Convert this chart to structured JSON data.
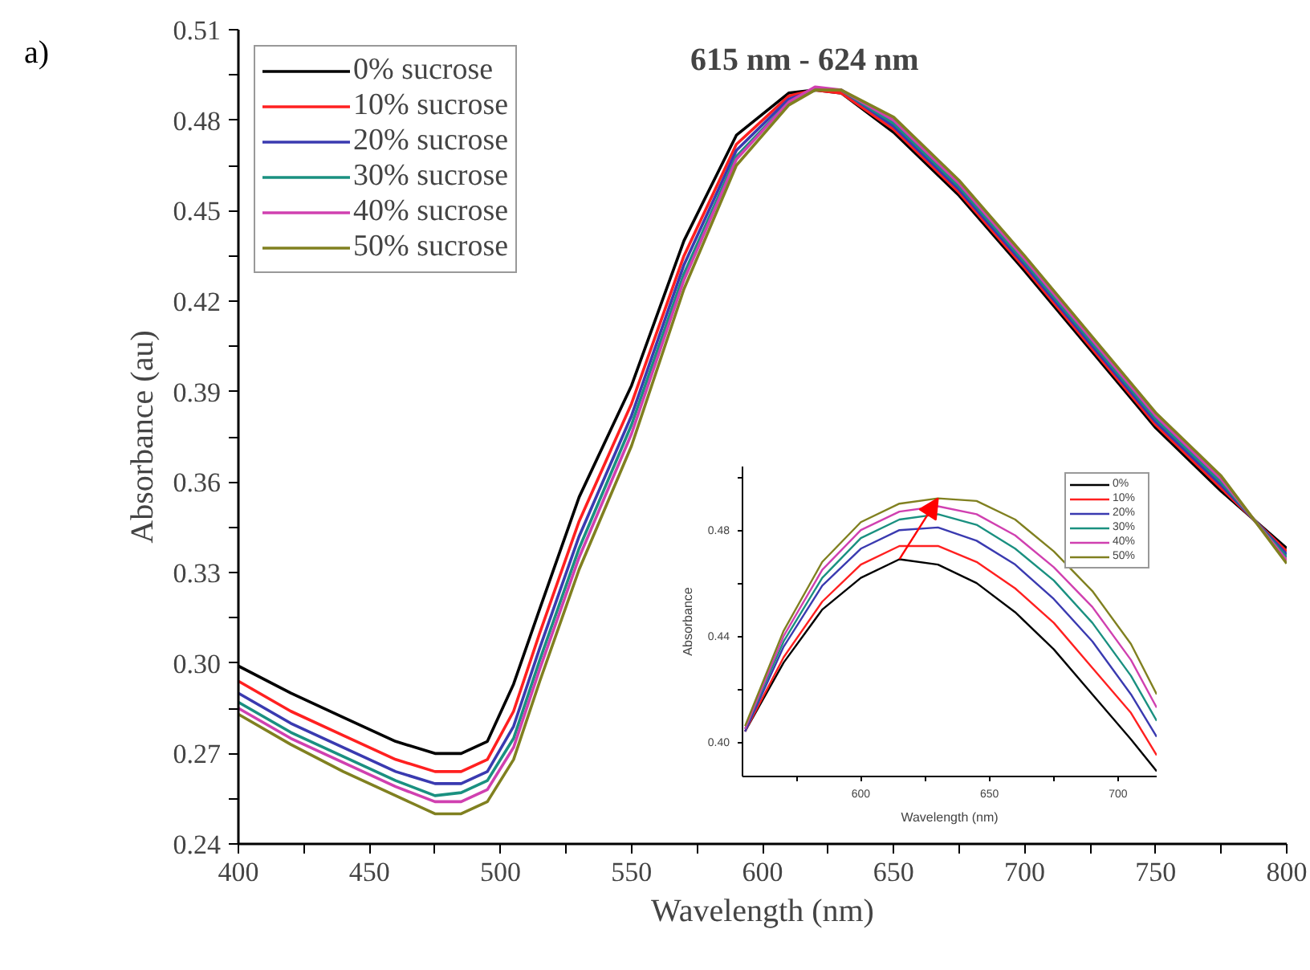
{
  "chart_data": [
    {
      "type": "line",
      "xlabel": "Wavelength (nm)",
      "ylabel": "Absorbance (au)",
      "annotations": [
        "a)",
        "615 nm - 624 nm"
      ],
      "x": [
        400,
        420,
        440,
        460,
        475,
        485,
        495,
        505,
        515,
        530,
        550,
        570,
        590,
        610,
        620,
        630,
        650,
        675,
        700,
        725,
        750,
        775,
        800
      ],
      "series": [
        {
          "name": "0% sucrose",
          "color": "#000000",
          "values": [
            0.299,
            0.29,
            0.282,
            0.274,
            0.27,
            0.27,
            0.274,
            0.293,
            0.318,
            0.355,
            0.392,
            0.44,
            0.475,
            0.489,
            0.49,
            0.489,
            0.476,
            0.455,
            0.43,
            0.404,
            0.378,
            0.357,
            0.338
          ]
        },
        {
          "name": "10% sucrose",
          "color": "#ff2020",
          "values": [
            0.294,
            0.284,
            0.276,
            0.268,
            0.264,
            0.264,
            0.268,
            0.284,
            0.31,
            0.347,
            0.386,
            0.435,
            0.472,
            0.488,
            0.49,
            0.489,
            0.477,
            0.456,
            0.431,
            0.405,
            0.379,
            0.358,
            0.337
          ]
        },
        {
          "name": "20% sucrose",
          "color": "#3a3ab0",
          "values": [
            0.29,
            0.28,
            0.272,
            0.264,
            0.26,
            0.26,
            0.264,
            0.279,
            0.305,
            0.342,
            0.382,
            0.432,
            0.47,
            0.487,
            0.49,
            0.49,
            0.478,
            0.457,
            0.432,
            0.406,
            0.38,
            0.359,
            0.336
          ]
        },
        {
          "name": "30% sucrose",
          "color": "#1a9080",
          "values": [
            0.287,
            0.277,
            0.269,
            0.261,
            0.256,
            0.257,
            0.261,
            0.275,
            0.301,
            0.338,
            0.379,
            0.429,
            0.468,
            0.486,
            0.49,
            0.49,
            0.479,
            0.458,
            0.433,
            0.407,
            0.381,
            0.36,
            0.335
          ]
        },
        {
          "name": "40% sucrose",
          "color": "#d040b0",
          "values": [
            0.285,
            0.275,
            0.267,
            0.259,
            0.254,
            0.254,
            0.258,
            0.272,
            0.298,
            0.335,
            0.376,
            0.427,
            0.467,
            0.486,
            0.491,
            0.49,
            0.48,
            0.459,
            0.434,
            0.408,
            0.382,
            0.361,
            0.334
          ]
        },
        {
          "name": "50% sucrose",
          "color": "#808020",
          "values": [
            0.283,
            0.273,
            0.264,
            0.256,
            0.25,
            0.25,
            0.254,
            0.268,
            0.294,
            0.331,
            0.372,
            0.424,
            0.465,
            0.485,
            0.49,
            0.49,
            0.481,
            0.46,
            0.435,
            0.409,
            0.383,
            0.362,
            0.333
          ]
        }
      ],
      "xlim": [
        400,
        800
      ],
      "xticks": [
        400,
        {
          "value": 425,
          "label": null
        },
        450,
        {
          "value": 475,
          "label": null
        },
        500,
        {
          "value": 525,
          "label": null
        },
        550,
        {
          "value": 575,
          "label": null
        },
        600,
        {
          "value": 625,
          "label": null
        },
        650,
        {
          "value": 675,
          "label": null
        },
        700,
        {
          "value": 725,
          "label": null
        },
        750,
        {
          "value": 775,
          "label": null
        },
        800
      ],
      "ylim": [
        0.24,
        0.51
      ],
      "yticks": [
        0.24,
        {
          "value": 0.255,
          "label": null
        },
        0.27,
        {
          "value": 0.285,
          "label": null
        },
        {
          "value": 0.3,
          "label": "0.30"
        },
        {
          "value": 0.315,
          "label": null
        },
        0.33,
        {
          "value": 0.345,
          "label": null
        },
        0.36,
        {
          "value": 0.375,
          "label": null
        },
        0.39,
        {
          "value": 0.405,
          "label": null
        },
        0.42,
        {
          "value": 0.435,
          "label": null
        },
        0.45,
        {
          "value": 0.465,
          "label": null
        },
        0.48,
        {
          "value": 0.495,
          "label": null
        },
        0.51
      ],
      "legend": "top left",
      "grid": false
    },
    {
      "type": "line",
      "xlabel": "Wavelength (nm)",
      "ylabel": "Absorbance",
      "x": [
        555,
        570,
        585,
        600,
        615,
        630,
        645,
        660,
        675,
        690,
        705,
        715
      ],
      "series": [
        {
          "name": "0%",
          "color": "#000000",
          "values": [
            0.404,
            0.43,
            0.45,
            0.462,
            0.469,
            0.467,
            0.46,
            0.449,
            0.435,
            0.418,
            0.401,
            0.389
          ]
        },
        {
          "name": "10%",
          "color": "#ff2020",
          "values": [
            0.404,
            0.432,
            0.453,
            0.467,
            0.474,
            0.474,
            0.468,
            0.458,
            0.445,
            0.428,
            0.411,
            0.395
          ]
        },
        {
          "name": "20%",
          "color": "#3a3ab0",
          "values": [
            0.404,
            0.436,
            0.459,
            0.473,
            0.48,
            0.481,
            0.476,
            0.467,
            0.454,
            0.438,
            0.418,
            0.402
          ]
        },
        {
          "name": "30%",
          "color": "#1a9080",
          "values": [
            0.405,
            0.438,
            0.462,
            0.477,
            0.484,
            0.486,
            0.482,
            0.473,
            0.461,
            0.445,
            0.425,
            0.408
          ]
        },
        {
          "name": "40%",
          "color": "#d040b0",
          "values": [
            0.405,
            0.44,
            0.465,
            0.48,
            0.487,
            0.489,
            0.486,
            0.478,
            0.466,
            0.451,
            0.431,
            0.413
          ]
        },
        {
          "name": "50%",
          "color": "#808020",
          "values": [
            0.406,
            0.442,
            0.468,
            0.483,
            0.49,
            0.492,
            0.491,
            0.484,
            0.472,
            0.457,
            0.437,
            0.418
          ]
        }
      ],
      "xlim": [
        554,
        715
      ],
      "xticks": [
        {
          "value": 575,
          "label": null
        },
        600,
        {
          "value": 625,
          "label": null
        },
        650,
        {
          "value": 675,
          "label": null
        },
        700
      ],
      "ylim": [
        0.387,
        0.504
      ],
      "yticks": [
        {
          "value": 0.4,
          "label": "0.40"
        },
        {
          "value": 0.42,
          "label": null
        },
        0.44,
        {
          "value": 0.46,
          "label": null
        },
        0.48,
        {
          "value": 0.5,
          "label": null
        }
      ],
      "legend": "top right",
      "grid": false
    }
  ]
}
